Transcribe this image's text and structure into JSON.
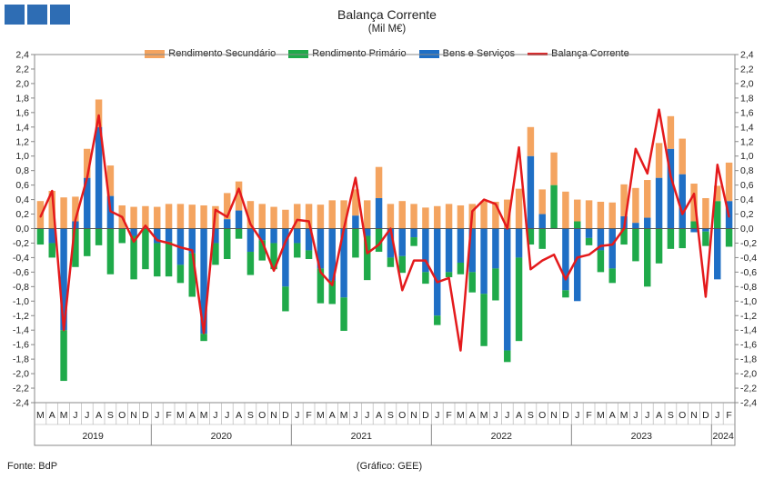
{
  "colors": {
    "secundario": "#f4a460",
    "primario": "#1faa4a",
    "bens": "#1f6fc5",
    "balanca": "#e41a1c",
    "logo": "#2e6db4"
  },
  "footer": {
    "source": "Fonte: BdP",
    "credit": "(Gráfico: GEE)"
  },
  "chart_data": {
    "type": "bar",
    "title": "Balança Corrente",
    "subtitle": "(Mil M€)",
    "ylim": [
      -2.4,
      2.4
    ],
    "yticks": [
      "2,4",
      "2,2",
      "2,0",
      "1,8",
      "1,6",
      "1,4",
      "1,2",
      "1,0",
      "0,8",
      "0,6",
      "0,4",
      "0,2",
      "0,0",
      "-0,2",
      "-0,4",
      "-0,6",
      "-0,8",
      "-1,0",
      "-1,2",
      "-1,4",
      "-1,6",
      "-1,8",
      "-2,0",
      "-2,2",
      "-2,4"
    ],
    "months": [
      "M",
      "A",
      "M",
      "J",
      "J",
      "A",
      "S",
      "O",
      "N",
      "D",
      "J",
      "F",
      "M",
      "A",
      "M",
      "J",
      "J",
      "A",
      "S",
      "O",
      "N",
      "D",
      "J",
      "F",
      "M",
      "A",
      "M",
      "J",
      "J",
      "A",
      "S",
      "O",
      "N",
      "D",
      "J",
      "F",
      "M",
      "A",
      "M",
      "J",
      "J",
      "A",
      "S",
      "O",
      "N",
      "D",
      "J",
      "F",
      "M",
      "A",
      "M",
      "J",
      "J",
      "A",
      "S",
      "O",
      "N",
      "D",
      "J",
      "F"
    ],
    "years": [
      {
        "label": "2019",
        "start": 0,
        "count": 10
      },
      {
        "label": "2020",
        "start": 10,
        "count": 12
      },
      {
        "label": "2021",
        "start": 22,
        "count": 12
      },
      {
        "label": "2022",
        "start": 34,
        "count": 12
      },
      {
        "label": "2023",
        "start": 46,
        "count": 12
      },
      {
        "label": "2024",
        "start": 58,
        "count": 2
      }
    ],
    "grid": false,
    "legend_position": "top",
    "series": [
      {
        "name": "Rendimento Secundário",
        "values": [
          0.38,
          0.52,
          0.43,
          0.34,
          0.4,
          0.38,
          0.42,
          0.32,
          0.3,
          0.31,
          0.3,
          0.34,
          0.34,
          0.33,
          0.32,
          0.31,
          0.36,
          0.4,
          0.38,
          0.34,
          0.3,
          0.26,
          0.34,
          0.34,
          0.33,
          0.39,
          0.39,
          0.36,
          0.39,
          0.43,
          0.34,
          0.38,
          0.34,
          0.29,
          0.31,
          0.34,
          0.32,
          0.34,
          0.38,
          0.37,
          0.4,
          0.55,
          0.4,
          0.34,
          0.45,
          0.51,
          0.3,
          0.39,
          0.37,
          0.36,
          0.44,
          0.48,
          0.52,
          0.48,
          0.45,
          0.49,
          0.52,
          0.42,
          0.21,
          0.53
        ]
      },
      {
        "name": "Rendimento Primário",
        "values": [
          -0.22,
          -0.2,
          -0.7,
          -0.53,
          -0.38,
          -0.23,
          -0.63,
          -0.2,
          -0.6,
          -0.56,
          -0.46,
          -0.48,
          -0.25,
          -0.6,
          -0.1,
          -0.3,
          -0.42,
          -0.14,
          -0.32,
          -0.28,
          -0.36,
          -0.34,
          -0.2,
          -0.12,
          -0.48,
          -0.32,
          -0.46,
          -0.4,
          -0.61,
          -0.32,
          -0.13,
          -0.23,
          -0.12,
          -0.16,
          -0.13,
          -0.07,
          -0.16,
          -0.28,
          -0.72,
          -0.44,
          -0.16,
          -1.15,
          -0.22,
          -0.28,
          0.6,
          -0.1,
          0.1,
          -0.1,
          -0.3,
          -0.2,
          -0.22,
          -0.45,
          -0.8,
          -0.48,
          -0.28,
          -0.27,
          0.1,
          -0.2,
          0.38,
          -0.25
        ]
      },
      {
        "name": "Bens e Serviços",
        "values": [
          0.0,
          -0.2,
          -1.4,
          0.1,
          0.7,
          1.4,
          0.45,
          -0.0,
          -0.1,
          0.0,
          -0.2,
          -0.18,
          -0.5,
          -0.34,
          -1.45,
          -0.2,
          0.13,
          0.25,
          -0.32,
          -0.16,
          -0.2,
          -0.8,
          -0.2,
          -0.3,
          -0.55,
          -0.72,
          -0.95,
          0.18,
          -0.1,
          0.42,
          -0.4,
          -0.38,
          -0.12,
          -0.6,
          -1.2,
          -0.6,
          -0.47,
          -0.6,
          -0.9,
          -0.55,
          -1.68,
          -0.4,
          1.0,
          0.2,
          0.0,
          -0.85,
          -1.0,
          -0.13,
          -0.3,
          -0.55,
          0.17,
          0.08,
          0.15,
          0.7,
          1.1,
          0.75,
          -0.05,
          -0.04,
          -0.7,
          0.38
        ]
      },
      {
        "name": "Balança Corrente",
        "values": [
          0.16,
          0.52,
          -1.4,
          0.12,
          0.7,
          1.56,
          0.24,
          0.16,
          -0.18,
          0.04,
          -0.16,
          -0.2,
          -0.26,
          -0.3,
          -1.44,
          0.26,
          0.16,
          0.55,
          0.06,
          -0.18,
          -0.58,
          -0.18,
          0.12,
          0.1,
          -0.6,
          -0.78,
          0.0,
          0.7,
          -0.34,
          -0.22,
          0.0,
          -0.85,
          -0.44,
          -0.44,
          -0.74,
          -0.68,
          -1.68,
          0.24,
          0.4,
          0.34,
          0.0,
          1.12,
          -0.56,
          -0.44,
          -0.36,
          -0.7,
          -0.4,
          -0.36,
          -0.24,
          -0.22,
          0.0,
          1.1,
          0.76,
          1.64,
          0.72,
          0.2,
          0.48,
          -0.94,
          0.88,
          0.16
        ]
      }
    ]
  }
}
